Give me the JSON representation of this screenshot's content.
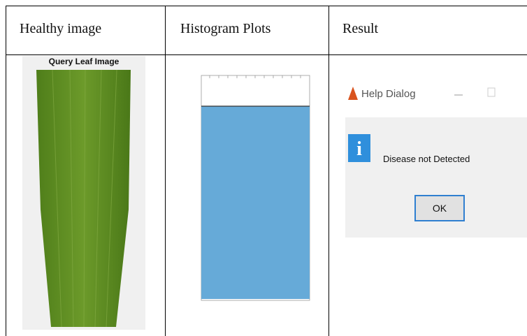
{
  "table": {
    "header": [
      "Healthy image",
      "Histogram Plots",
      "Result"
    ],
    "leaf_caption": "Query Leaf Image",
    "dialog": {
      "title": "Help Dialog",
      "message": "Disease not Detected",
      "button": "OK"
    }
  }
}
